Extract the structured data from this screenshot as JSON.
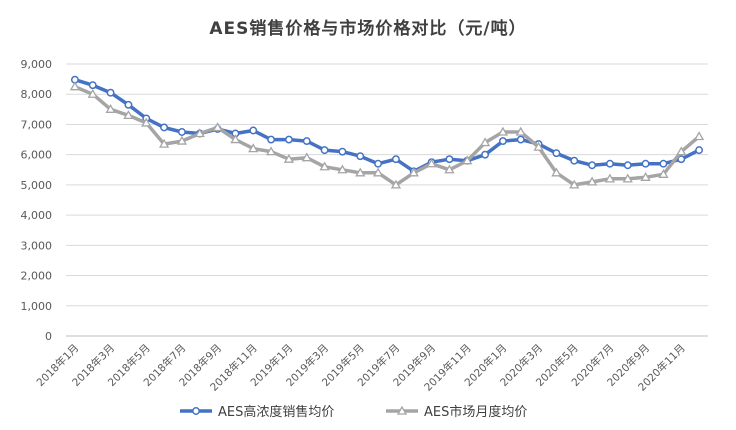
{
  "chart_data": {
    "type": "line",
    "title": "AES销售价格与市场价格对比（元/吨）",
    "xlabel": "",
    "ylabel": "",
    "ylim": [
      0,
      9000
    ],
    "y_ticks": [
      "0",
      "1,000",
      "2,000",
      "3,000",
      "4,000",
      "5,000",
      "6,000",
      "7,000",
      "8,000",
      "9,000"
    ],
    "x_tick_labels": [
      "2018年1月",
      "2018年3月",
      "2018年5月",
      "2018年7月",
      "2018年9月",
      "2018年11月",
      "2019年1月",
      "2019年3月",
      "2019年5月",
      "2019年7月",
      "2019年9月",
      "2019年11月",
      "2020年1月",
      "2020年3月",
      "2020年5月",
      "2020年7月",
      "2020年9月",
      "2020年11月"
    ],
    "grid": true,
    "legend_position": "bottom",
    "x": [
      "2018-01",
      "2018-02",
      "2018-03",
      "2018-04",
      "2018-05",
      "2018-06",
      "2018-07",
      "2018-08",
      "2018-09",
      "2018-10",
      "2018-11",
      "2018-12",
      "2019-01",
      "2019-02",
      "2019-03",
      "2019-04",
      "2019-05",
      "2019-06",
      "2019-07",
      "2019-08",
      "2019-09",
      "2019-10",
      "2019-11",
      "2019-12",
      "2020-01",
      "2020-02",
      "2020-03",
      "2020-04",
      "2020-05",
      "2020-06",
      "2020-07",
      "2020-08",
      "2020-09",
      "2020-10",
      "2020-11",
      "2020-12"
    ],
    "series": [
      {
        "name": "AES高浓度销售均价",
        "color": "#4472C4",
        "marker": "circle",
        "values": [
          8480,
          8300,
          8050,
          7650,
          7200,
          6900,
          6750,
          6700,
          6850,
          6700,
          6800,
          6500,
          6500,
          6450,
          6150,
          6100,
          5950,
          5700,
          5850,
          5450,
          5750,
          5850,
          5800,
          6000,
          6450,
          6500,
          6350,
          6050,
          5800,
          5650,
          5700,
          5650,
          5700,
          5700,
          5850,
          6150
        ]
      },
      {
        "name": "AES市场月度均价",
        "color": "#A5A5A5",
        "marker": "triangle",
        "values": [
          8250,
          8000,
          7500,
          7300,
          7050,
          6350,
          6450,
          6700,
          6900,
          6500,
          6200,
          6100,
          5850,
          5900,
          5600,
          5500,
          5400,
          5400,
          5000,
          5400,
          5700,
          5500,
          5800,
          6400,
          6750,
          6750,
          6250,
          5400,
          5000,
          5100,
          5200,
          5200,
          5250,
          5350,
          6100,
          6600
        ]
      }
    ]
  }
}
